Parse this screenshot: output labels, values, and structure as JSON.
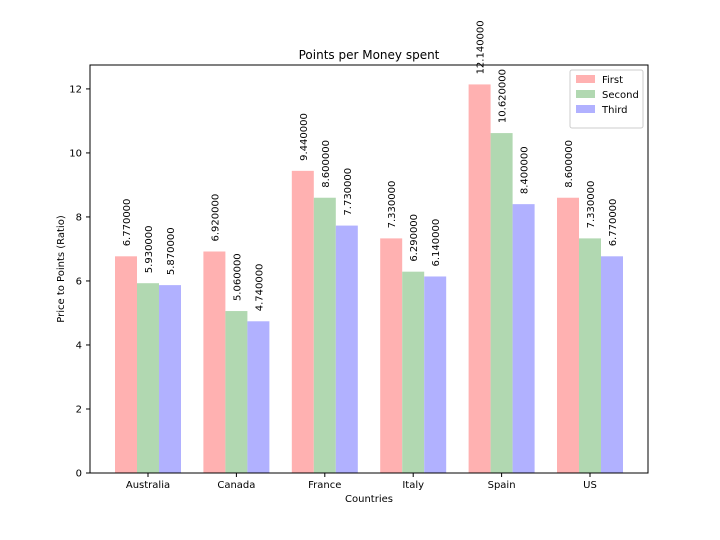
{
  "chart_data": {
    "type": "bar",
    "title": "Points per Money spent",
    "xlabel": "Countries",
    "ylabel": "Price to Points (Ratio)",
    "categories": [
      "Australia",
      "Canada",
      "France",
      "Italy",
      "Spain",
      "US"
    ],
    "ylim": [
      0,
      12.747
    ],
    "yticks": [
      0,
      2,
      4,
      6,
      8,
      10,
      12
    ],
    "grid": false,
    "legend_position": "top-right",
    "series": [
      {
        "name": "First",
        "color": "#ffb1b1",
        "values": [
          6.77,
          6.92,
          9.44,
          7.33,
          12.14,
          8.6
        ],
        "labels": [
          "6.770000",
          "6.920000",
          "9.440000",
          "7.330000",
          "12.140000",
          "8.600000"
        ]
      },
      {
        "name": "Second",
        "color": "#b1d8b1",
        "values": [
          5.93,
          5.06,
          8.6,
          6.29,
          10.62,
          7.33
        ],
        "labels": [
          "5.930000",
          "5.060000",
          "8.600000",
          "6.290000",
          "10.620000",
          "7.330000"
        ]
      },
      {
        "name": "Third",
        "color": "#b1b1ff",
        "values": [
          5.87,
          4.74,
          7.73,
          6.14,
          8.4,
          6.77
        ],
        "labels": [
          "5.870000",
          "4.740000",
          "7.730000",
          "6.140000",
          "8.400000",
          "6.770000"
        ]
      }
    ]
  }
}
